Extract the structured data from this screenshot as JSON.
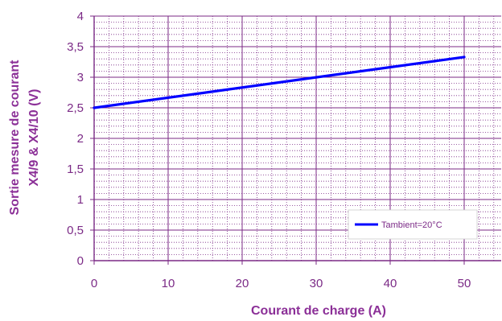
{
  "chart_data": {
    "type": "line",
    "xlabel": "Courant de charge (A)",
    "ylabel_lines": [
      "Sortie mesure de courant",
      "X4/9 & X4/10 (V)"
    ],
    "xlim": [
      0,
      55
    ],
    "ylim": [
      0,
      4
    ],
    "x_ticks": [
      "0",
      "10",
      "20",
      "30",
      "40",
      "50"
    ],
    "y_ticks": [
      "0",
      "0,5",
      "1",
      "1,5",
      "2",
      "2,5",
      "3",
      "3,5",
      "4"
    ],
    "x_tick_values": [
      0,
      10,
      20,
      30,
      40,
      50
    ],
    "y_tick_values": [
      0,
      0.5,
      1,
      1.5,
      2,
      2.5,
      3,
      3.5,
      4
    ],
    "grid": "major solid, minor dotted",
    "legend_position": "bottom-right",
    "series": [
      {
        "name": "Tambient=20°C",
        "color": "#0000ff",
        "x": [
          0,
          50
        ],
        "y": [
          2.5,
          3.33
        ]
      }
    ]
  }
}
